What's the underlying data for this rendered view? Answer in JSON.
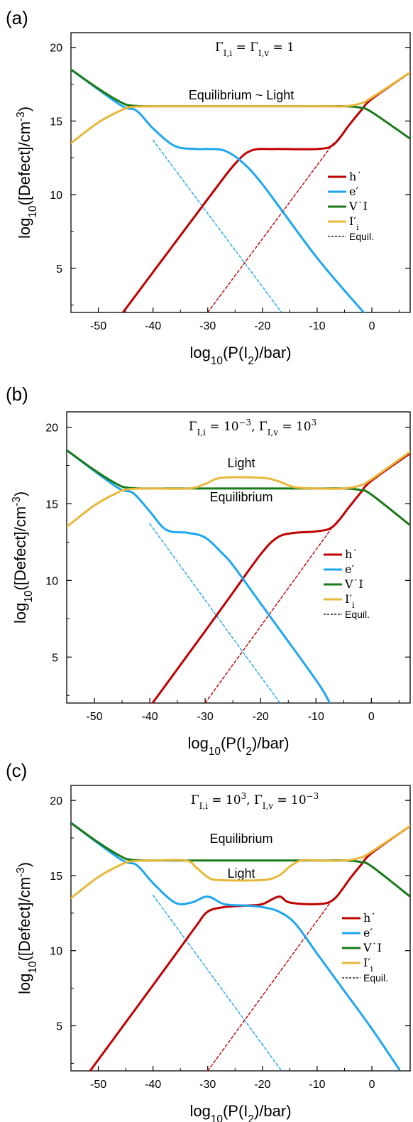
{
  "chart_data": [
    {
      "type": "line",
      "panel_label": "(a)",
      "title": "Γ_I,i = Γ_I,v = 1",
      "title_parts": [
        "Γ",
        "I,i",
        " = Γ",
        "I,v",
        " = 1"
      ],
      "annotations": [
        "Equilibrium ~ Light"
      ],
      "xlabel_parts": [
        "log",
        "10",
        "(P(I",
        "2",
        ")/bar)"
      ],
      "ylabel_parts": [
        "log",
        "10",
        "([Defect]/cm",
        "-3",
        ")"
      ],
      "xlim": [
        -55,
        7
      ],
      "ylim": [
        2,
        21
      ],
      "xticks": [
        -50,
        -40,
        -30,
        -20,
        -10,
        0
      ],
      "yticks": [
        5,
        10,
        15,
        20
      ],
      "legend": [
        "h˙",
        "e′",
        "V˙I",
        "I′i",
        "Equil."
      ],
      "series": [
        {
          "name": "h˙",
          "color": "#c00000",
          "style": "solid",
          "x": [
            -45.5,
            -30,
            -25,
            -22,
            -18,
            -10,
            -7,
            -4,
            -2,
            0,
            7
          ],
          "y": [
            2,
            9.7,
            12.1,
            13.0,
            13.1,
            13.1,
            13.4,
            14.8,
            15.7,
            16.5,
            18.3
          ]
        },
        {
          "name": "e′",
          "color": "#1ea7f0",
          "style": "solid",
          "x": [
            -55,
            -46,
            -43,
            -40,
            -36,
            -32,
            -30,
            -27,
            -24,
            -20,
            -10,
            -1.5
          ],
          "y": [
            18.5,
            16.1,
            15.7,
            14.5,
            13.3,
            13.1,
            13.1,
            13.0,
            12.3,
            10.7,
            5.7,
            2
          ]
        },
        {
          "name": "V˙I",
          "color": "#1a7a1a",
          "style": "solid",
          "x": [
            -55,
            -50,
            -46,
            -44,
            -40,
            -30,
            -10,
            -5,
            -2,
            0,
            7
          ],
          "y": [
            18.5,
            17.2,
            16.3,
            16.05,
            16.0,
            16.0,
            16.0,
            16.0,
            15.9,
            15.6,
            13.8
          ]
        },
        {
          "name": "I′i",
          "color": "#e8b83a",
          "style": "solid",
          "x": [
            -55,
            -50,
            -46,
            -44,
            -40,
            -30,
            -10,
            -5,
            -2,
            0,
            7
          ],
          "y": [
            13.5,
            14.9,
            15.7,
            15.95,
            16.0,
            16.0,
            16.0,
            16.0,
            16.2,
            16.6,
            18.3
          ]
        },
        {
          "name": "e′ Equil.",
          "color": "#1ea7f0",
          "style": "dashed",
          "x": [
            -40,
            -16.5
          ],
          "y": [
            13.7,
            2
          ]
        },
        {
          "name": "h˙ Equil.",
          "color": "#c00000",
          "style": "dashed",
          "x": [
            -30,
            -7
          ],
          "y": [
            2,
            13.5
          ]
        }
      ]
    },
    {
      "type": "line",
      "panel_label": "(b)",
      "title": "Γ_I,i = 10^-3, Γ_I,v = 10^3",
      "title_parts": [
        "Γ",
        "I,i",
        " = 10",
        "−3",
        ", Γ",
        "I,v",
        " = 10",
        "3"
      ],
      "annotations": [
        "Light",
        "Equilibrium"
      ],
      "xlabel_parts": [
        "log",
        "10",
        "(P(I",
        "2",
        ")/bar)"
      ],
      "ylabel_parts": [
        "log",
        "10",
        "([Defect]/cm",
        "-3",
        ")"
      ],
      "xlim": [
        -55,
        7
      ],
      "ylim": [
        2,
        21
      ],
      "xticks": [
        -50,
        -40,
        -30,
        -20,
        -10,
        0
      ],
      "yticks": [
        5,
        10,
        15,
        20
      ],
      "legend": [
        "h˙",
        "e′",
        "V˙I",
        "I′i",
        "Equil."
      ],
      "series": [
        {
          "name": "h˙",
          "color": "#c00000",
          "style": "solid",
          "x": [
            -39.5,
            -30,
            -25,
            -20,
            -17,
            -14,
            -10,
            -7,
            -4,
            -2,
            0,
            7
          ],
          "y": [
            2,
            6.7,
            9.2,
            11.7,
            12.8,
            13.1,
            13.2,
            13.5,
            14.8,
            15.7,
            16.5,
            18.3
          ]
        },
        {
          "name": "e′",
          "color": "#1ea7f0",
          "style": "solid",
          "x": [
            -55,
            -46,
            -43,
            -40,
            -37,
            -33,
            -30,
            -27,
            -25,
            -20,
            -10,
            -7.5
          ],
          "y": [
            18.5,
            16.1,
            15.7,
            14.5,
            13.3,
            13.1,
            12.8,
            11.8,
            11.0,
            8.5,
            3.5,
            2
          ]
        },
        {
          "name": "V˙I",
          "color": "#1a7a1a",
          "style": "solid",
          "x": [
            -55,
            -50,
            -46,
            -44,
            -40,
            -30,
            -10,
            -5,
            -2,
            0,
            7
          ],
          "y": [
            18.5,
            17.2,
            16.3,
            16.05,
            16.0,
            16.0,
            16.0,
            16.0,
            15.9,
            15.6,
            13.6
          ]
        },
        {
          "name": "I′i",
          "color": "#e8b83a",
          "style": "solid",
          "x": [
            -55,
            -50,
            -46,
            -44,
            -40,
            -33,
            -30,
            -27,
            -20,
            -17,
            -14,
            -10,
            -5,
            -2,
            0,
            7
          ],
          "y": [
            13.5,
            14.9,
            15.7,
            15.95,
            16.0,
            16.0,
            16.3,
            16.7,
            16.7,
            16.5,
            16.1,
            16.0,
            16.0,
            16.2,
            16.6,
            18.4
          ]
        },
        {
          "name": "I′i Equil.",
          "color": "#e8b83a",
          "style": "dashed",
          "x": [
            -33,
            -12
          ],
          "y": [
            16.0,
            16.0
          ]
        },
        {
          "name": "e′ Equil.",
          "color": "#1ea7f0",
          "style": "dashed",
          "x": [
            -40,
            -16.5
          ],
          "y": [
            13.7,
            2
          ]
        },
        {
          "name": "h˙ Equil.",
          "color": "#c00000",
          "style": "dashed",
          "x": [
            -30,
            -7
          ],
          "y": [
            2,
            13.5
          ]
        }
      ]
    },
    {
      "type": "line",
      "panel_label": "(c)",
      "title": "Γ_I,i = 10^3, Γ_I,v = 10^-3",
      "title_parts": [
        "Γ",
        "I,i",
        " = 10",
        "3",
        ", Γ",
        "I,v",
        " = 10",
        "−3"
      ],
      "annotations": [
        "Equilibrium",
        "Light"
      ],
      "xlabel_parts": [
        "log",
        "10",
        "(P(I",
        "2",
        ")/bar)"
      ],
      "ylabel_parts": [
        "log",
        "10",
        "([Defect]/cm",
        "-3",
        ")"
      ],
      "xlim": [
        -55,
        7
      ],
      "ylim": [
        2,
        21
      ],
      "xticks": [
        -50,
        -40,
        -30,
        -20,
        -10,
        0
      ],
      "yticks": [
        5,
        10,
        15,
        20
      ],
      "legend": [
        "h˙",
        "e′",
        "V˙I",
        "I′i",
        "Equil."
      ],
      "series": [
        {
          "name": "h˙",
          "color": "#c00000",
          "style": "solid",
          "x": [
            -51.5,
            -40,
            -35,
            -32,
            -30,
            -27,
            -23,
            -20,
            -17,
            -15,
            -10,
            -7,
            -4,
            -2,
            0,
            7
          ],
          "y": [
            2,
            7.7,
            10.2,
            11.7,
            12.6,
            12.9,
            13.0,
            13.1,
            13.6,
            13.2,
            13.1,
            13.4,
            14.8,
            15.7,
            16.5,
            18.3
          ]
        },
        {
          "name": "e′",
          "color": "#1ea7f0",
          "style": "solid",
          "x": [
            -55,
            -46,
            -43,
            -40,
            -36,
            -33,
            -30,
            -27,
            -23,
            -20,
            -17,
            -14,
            -10,
            -5,
            0,
            5
          ],
          "y": [
            18.5,
            16.1,
            15.7,
            14.5,
            13.2,
            13.2,
            13.6,
            13.1,
            13.0,
            12.9,
            12.6,
            11.8,
            9.8,
            7.3,
            4.8,
            2.1
          ]
        },
        {
          "name": "V˙I",
          "color": "#1a7a1a",
          "style": "solid",
          "x": [
            -55,
            -50,
            -46,
            -44,
            -40,
            -30,
            -10,
            -5,
            -2,
            0,
            7
          ],
          "y": [
            18.5,
            17.2,
            16.3,
            16.05,
            16.0,
            16.0,
            16.0,
            16.0,
            15.9,
            15.6,
            13.6
          ]
        },
        {
          "name": "I′i",
          "color": "#e8b83a",
          "style": "solid",
          "x": [
            -55,
            -50,
            -46,
            -44,
            -40,
            -34,
            -32,
            -30,
            -28,
            -20,
            -17,
            -15,
            -13,
            -10,
            -5,
            -2,
            0,
            7
          ],
          "y": [
            13.5,
            14.9,
            15.7,
            15.95,
            16.0,
            16.0,
            15.5,
            14.9,
            14.7,
            14.7,
            15.0,
            15.6,
            16.0,
            16.0,
            16.0,
            16.2,
            16.6,
            18.3
          ]
        },
        {
          "name": "I′i Equil.",
          "color": "#e8b83a",
          "style": "dashed",
          "x": [
            -33,
            -12
          ],
          "y": [
            16.0,
            16.0
          ]
        },
        {
          "name": "e′ Equil.",
          "color": "#1ea7f0",
          "style": "dashed",
          "x": [
            -40,
            -16.5
          ],
          "y": [
            13.7,
            2
          ]
        },
        {
          "name": "h˙ Equil.",
          "color": "#c00000",
          "style": "dashed",
          "x": [
            -30,
            -7
          ],
          "y": [
            2,
            13.5
          ]
        }
      ]
    }
  ]
}
